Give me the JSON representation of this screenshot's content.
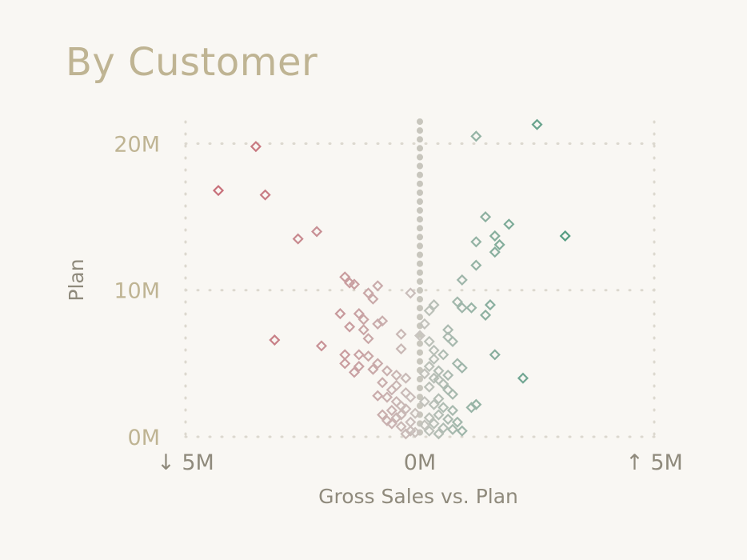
{
  "chart_data": {
    "type": "scatter",
    "title": "By Customer",
    "xlabel": "Gross Sales vs. Plan",
    "ylabel": "Plan",
    "xlim": [
      -5000000,
      5000000
    ],
    "ylim": [
      0,
      21500000
    ],
    "x_ticks": [
      {
        "value": -5000000,
        "label": "↓ 5M"
      },
      {
        "value": 0,
        "label": "0M"
      },
      {
        "value": 5000000,
        "label": "↑ 5M"
      }
    ],
    "y_ticks": [
      {
        "value": 0,
        "label": "0M"
      },
      {
        "value": 10000000,
        "label": "10M"
      },
      {
        "value": 20000000,
        "label": "20M"
      }
    ],
    "grid": true,
    "marker": "diamond",
    "colors": {
      "negative": "#c8707a",
      "neutral": "#c9c5c0",
      "positive": "#3f9577",
      "grid": "#dcd8cf",
      "zero_line": "#c8c6bd"
    },
    "points": [
      [
        -4.3,
        16.8
      ],
      [
        -3.5,
        19.8
      ],
      [
        -3.3,
        16.5
      ],
      [
        -2.6,
        13.5
      ],
      [
        -2.2,
        14.0
      ],
      [
        -3.1,
        6.6
      ],
      [
        -2.1,
        6.2
      ],
      [
        -1.6,
        10.9
      ],
      [
        -1.5,
        10.5
      ],
      [
        -1.4,
        10.4
      ],
      [
        -0.9,
        10.3
      ],
      [
        -1.1,
        9.8
      ],
      [
        -1.0,
        9.4
      ],
      [
        -1.7,
        8.4
      ],
      [
        -1.3,
        8.4
      ],
      [
        -1.2,
        8.0
      ],
      [
        -0.8,
        7.9
      ],
      [
        -1.5,
        7.5
      ],
      [
        -1.2,
        7.3
      ],
      [
        -0.9,
        7.7
      ],
      [
        -1.1,
        6.7
      ],
      [
        -0.4,
        6.0
      ],
      [
        -0.4,
        7.0
      ],
      [
        -1.6,
        5.6
      ],
      [
        -1.3,
        5.6
      ],
      [
        -1.1,
        5.5
      ],
      [
        -1.6,
        5.0
      ],
      [
        -1.3,
        4.8
      ],
      [
        -1.4,
        4.4
      ],
      [
        -1.0,
        4.6
      ],
      [
        -0.9,
        5.0
      ],
      [
        -0.7,
        4.5
      ],
      [
        -0.5,
        4.2
      ],
      [
        -0.3,
        4.0
      ],
      [
        -0.8,
        3.7
      ],
      [
        -0.6,
        3.2
      ],
      [
        -0.9,
        2.8
      ],
      [
        -0.7,
        2.7
      ],
      [
        -0.5,
        2.4
      ],
      [
        -0.4,
        2.1
      ],
      [
        -0.3,
        1.9
      ],
      [
        -0.6,
        1.8
      ],
      [
        -0.8,
        1.5
      ],
      [
        -0.5,
        1.3
      ],
      [
        -0.2,
        1.0
      ],
      [
        -0.6,
        0.9
      ],
      [
        -0.4,
        0.7
      ],
      [
        -0.2,
        0.4
      ],
      [
        -0.3,
        0.2
      ],
      [
        -0.1,
        0.3
      ],
      [
        -0.7,
        1.1
      ],
      [
        -0.3,
        3.0
      ],
      [
        -0.5,
        3.5
      ],
      [
        -0.2,
        2.7
      ],
      [
        -0.1,
        1.6
      ],
      [
        -0.4,
        1.5
      ],
      [
        -0.2,
        9.8
      ],
      [
        0.0,
        6.9
      ],
      [
        0.2,
        8.6
      ],
      [
        0.3,
        9.0
      ],
      [
        0.1,
        7.7
      ],
      [
        0.2,
        6.5
      ],
      [
        0.3,
        5.3
      ],
      [
        0.2,
        4.8
      ],
      [
        0.4,
        4.5
      ],
      [
        0.5,
        5.6
      ],
      [
        0.6,
        6.8
      ],
      [
        0.6,
        7.3
      ],
      [
        0.7,
        6.5
      ],
      [
        0.8,
        5.0
      ],
      [
        0.9,
        4.7
      ],
      [
        0.3,
        4.0
      ],
      [
        0.5,
        3.6
      ],
      [
        0.6,
        3.2
      ],
      [
        0.7,
        2.9
      ],
      [
        0.4,
        2.6
      ],
      [
        0.3,
        2.2
      ],
      [
        0.5,
        2.0
      ],
      [
        0.7,
        1.8
      ],
      [
        0.4,
        1.5
      ],
      [
        0.2,
        1.3
      ],
      [
        0.6,
        1.2
      ],
      [
        0.8,
        1.0
      ],
      [
        0.3,
        0.9
      ],
      [
        0.5,
        0.6
      ],
      [
        0.7,
        0.5
      ],
      [
        0.9,
        0.4
      ],
      [
        0.2,
        0.4
      ],
      [
        0.4,
        0.2
      ],
      [
        0.1,
        0.8
      ],
      [
        0.1,
        2.4
      ],
      [
        0.2,
        3.4
      ],
      [
        0.1,
        4.3
      ],
      [
        0.3,
        5.9
      ],
      [
        0.6,
        4.2
      ],
      [
        0.4,
        3.9
      ],
      [
        1.2,
        20.5
      ],
      [
        2.5,
        21.3
      ],
      [
        1.4,
        15.0
      ],
      [
        1.9,
        14.5
      ],
      [
        1.6,
        13.7
      ],
      [
        1.7,
        13.1
      ],
      [
        1.2,
        13.3
      ],
      [
        1.6,
        12.6
      ],
      [
        1.2,
        11.7
      ],
      [
        0.9,
        10.7
      ],
      [
        0.8,
        9.2
      ],
      [
        0.9,
        8.8
      ],
      [
        1.1,
        8.8
      ],
      [
        1.5,
        9.0
      ],
      [
        1.4,
        8.3
      ],
      [
        1.6,
        5.6
      ],
      [
        2.2,
        4.0
      ],
      [
        1.2,
        2.2
      ],
      [
        1.1,
        2.0
      ],
      [
        3.1,
        13.7
      ]
    ]
  }
}
